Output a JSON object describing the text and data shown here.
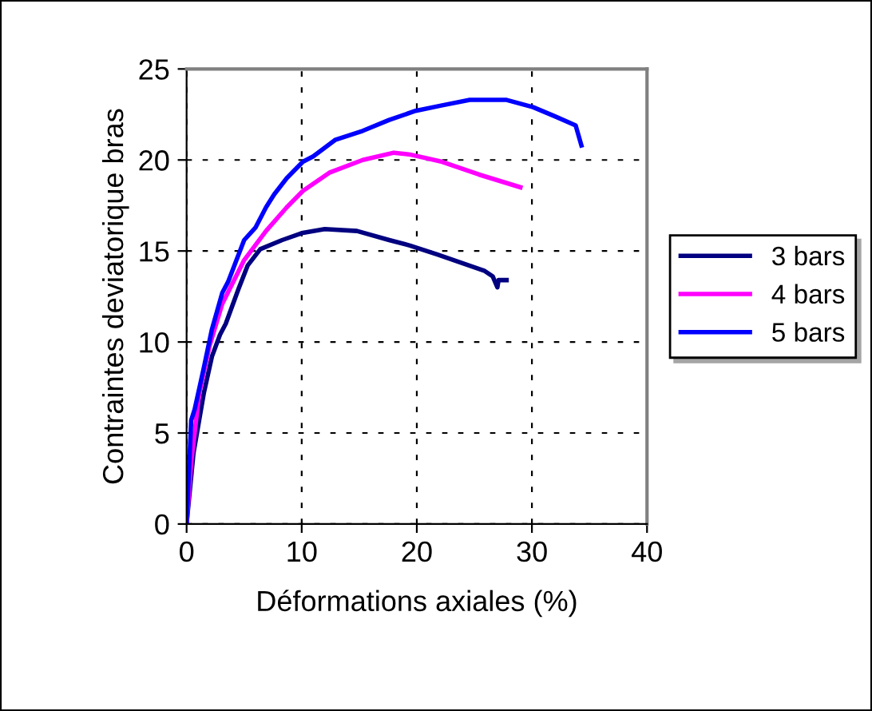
{
  "chart_data": {
    "type": "line",
    "xlabel": "Déformations axiales (%)",
    "ylabel": "Contraintes deviatorique bras",
    "xlim": [
      0,
      40
    ],
    "ylim": [
      0,
      25
    ],
    "xticks": [
      0,
      10,
      20,
      30,
      40
    ],
    "yticks": [
      0,
      5,
      10,
      15,
      20,
      25
    ],
    "grid": true,
    "legend": "right",
    "line_style": "solid",
    "marker": "none",
    "series": [
      {
        "name": "3 bars",
        "color": "#000080",
        "x": [
          0,
          0.6,
          1.5,
          2.2,
          2.9,
          3.4,
          4.5,
          5.3,
          6.4,
          8.3,
          10.1,
          12.0,
          14.8,
          17.6,
          19.4,
          21.8,
          24.1,
          25.9,
          26.6,
          27.0,
          27.1,
          27.8
        ],
        "values": [
          0,
          3.9,
          7.2,
          9.2,
          10.4,
          11.0,
          12.9,
          14.2,
          15.1,
          15.6,
          16.0,
          16.2,
          16.1,
          15.6,
          15.3,
          14.8,
          14.3,
          13.9,
          13.6,
          13.0,
          13.4,
          13.4
        ]
      },
      {
        "name": "4 bars",
        "color": "#ff00ff",
        "x": [
          0,
          0.4,
          1.1,
          2.0,
          3.1,
          5.0,
          6.9,
          8.7,
          10.1,
          12.4,
          15.3,
          18.0,
          19.4,
          22.2,
          25.4,
          29.0
        ],
        "values": [
          0,
          3.4,
          7.2,
          9.8,
          12.1,
          14.5,
          16.1,
          17.4,
          18.3,
          19.3,
          20.0,
          20.4,
          20.3,
          19.9,
          19.2,
          18.5
        ]
      },
      {
        "name": "5 bars",
        "color": "#0000ff",
        "x": [
          0,
          0.4,
          0.7,
          1.5,
          2.2,
          3.1,
          3.6,
          5.0,
          6.0,
          6.9,
          7.6,
          8.7,
          10.1,
          11.0,
          12.9,
          15.3,
          17.6,
          19.9,
          22.2,
          24.6,
          27.8,
          30.1,
          32.0,
          33.8,
          34.3
        ],
        "values": [
          0,
          5.7,
          6.3,
          8.6,
          10.7,
          12.7,
          13.3,
          15.6,
          16.3,
          17.4,
          18.1,
          19.0,
          19.9,
          20.2,
          21.1,
          21.6,
          22.2,
          22.7,
          23.0,
          23.3,
          23.3,
          22.9,
          22.4,
          21.9,
          20.8
        ]
      }
    ]
  }
}
